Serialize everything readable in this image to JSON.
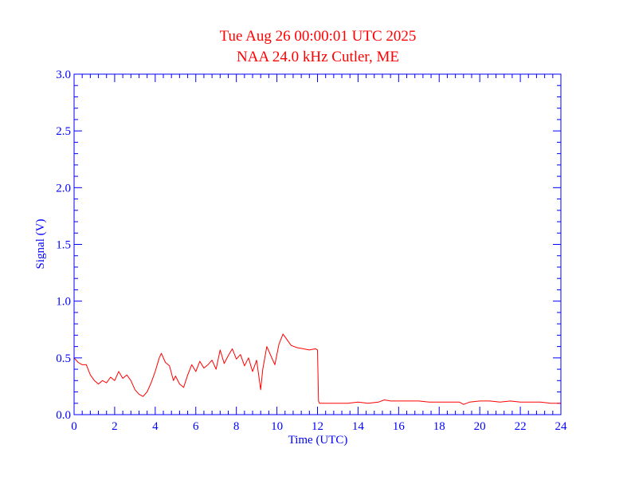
{
  "chart_data": {
    "type": "line",
    "title": "Tue Aug 26 00:00:01 UTC 2025",
    "subtitle": "NAA 24.0 kHz Cutler, ME",
    "xlabel": "Time (UTC)",
    "ylabel": "Signal (V)",
    "xlim": [
      0,
      24
    ],
    "ylim": [
      0.0,
      3.0
    ],
    "xticks": [
      0,
      2,
      4,
      6,
      8,
      10,
      12,
      14,
      16,
      18,
      20,
      22,
      24
    ],
    "yticks": [
      0.0,
      0.5,
      1.0,
      1.5,
      2.0,
      2.5,
      3.0
    ],
    "ytick_labels": [
      "0.0",
      "0.5",
      "1.0",
      "1.5",
      "2.0",
      "2.5",
      "3.0"
    ],
    "grid": false,
    "colors": {
      "axes": "#0000ff",
      "series": "#ff0000",
      "title": "#ff0000"
    },
    "series": [
      {
        "values_x": [
          0.0,
          0.2,
          0.4,
          0.6,
          0.8,
          1.0,
          1.2,
          1.4,
          1.6,
          1.8,
          2.0,
          2.2,
          2.4,
          2.6,
          2.8,
          3.0,
          3.2,
          3.4,
          3.6,
          3.8,
          4.0,
          4.2,
          4.3,
          4.5,
          4.7,
          4.9,
          5.0,
          5.2,
          5.4,
          5.6,
          5.8,
          6.0,
          6.2,
          6.4,
          6.6,
          6.8,
          7.0,
          7.2,
          7.4,
          7.6,
          7.8,
          8.0,
          8.2,
          8.4,
          8.6,
          8.8,
          9.0,
          9.2,
          9.3,
          9.5,
          9.7,
          9.9,
          10.1,
          10.3,
          10.5,
          10.7,
          11.0,
          11.3,
          11.6,
          11.9,
          12.0,
          12.05,
          12.1,
          12.5,
          13.0,
          13.5,
          14.0,
          14.5,
          15.0,
          15.3,
          15.6,
          16.0,
          16.5,
          17.0,
          17.5,
          18.0,
          18.5,
          19.0,
          19.2,
          19.5,
          20.0,
          20.5,
          21.0,
          21.5,
          22.0,
          22.5,
          23.0,
          23.5,
          24.0
        ],
        "values_y": [
          0.5,
          0.46,
          0.44,
          0.44,
          0.35,
          0.3,
          0.27,
          0.3,
          0.28,
          0.33,
          0.3,
          0.38,
          0.32,
          0.35,
          0.3,
          0.22,
          0.18,
          0.16,
          0.2,
          0.28,
          0.38,
          0.5,
          0.54,
          0.46,
          0.43,
          0.3,
          0.34,
          0.27,
          0.24,
          0.35,
          0.44,
          0.38,
          0.47,
          0.41,
          0.44,
          0.48,
          0.4,
          0.57,
          0.45,
          0.52,
          0.58,
          0.49,
          0.53,
          0.43,
          0.5,
          0.38,
          0.48,
          0.22,
          0.4,
          0.6,
          0.52,
          0.44,
          0.62,
          0.71,
          0.66,
          0.61,
          0.59,
          0.58,
          0.57,
          0.58,
          0.57,
          0.12,
          0.1,
          0.1,
          0.1,
          0.1,
          0.11,
          0.1,
          0.11,
          0.13,
          0.12,
          0.12,
          0.12,
          0.12,
          0.11,
          0.11,
          0.11,
          0.11,
          0.09,
          0.11,
          0.12,
          0.12,
          0.11,
          0.12,
          0.11,
          0.11,
          0.11,
          0.1,
          0.1
        ]
      }
    ]
  }
}
